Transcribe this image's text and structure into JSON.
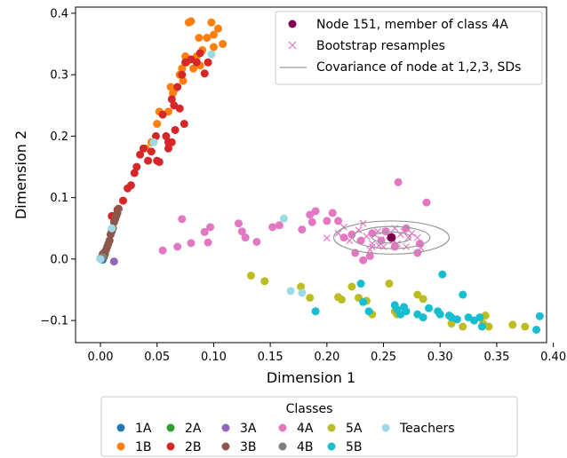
{
  "chart_data": {
    "type": "scatter",
    "xlabel": "Dimension 1",
    "ylabel": "Dimension 2",
    "xlim": [
      -0.022,
      0.394
    ],
    "ylim": [
      -0.136,
      0.41
    ],
    "xticks": [
      0.0,
      0.05,
      0.1,
      0.15,
      0.2,
      0.25,
      0.3,
      0.35,
      0.4
    ],
    "xtick_labels": [
      "0.00",
      "0.05",
      "0.10",
      "0.15",
      "0.20",
      "0.25",
      "0.30",
      "0.35",
      "0.40"
    ],
    "yticks": [
      -0.1,
      0.0,
      0.1,
      0.2,
      0.3,
      0.4
    ],
    "ytick_labels": [
      "−0.1",
      "0.0",
      "0.1",
      "0.2",
      "0.3",
      "0.4"
    ],
    "grid": false,
    "top_legend": {
      "position": "top-right",
      "entries": [
        {
          "label": "Node 151, member of class 4A",
          "marker": "dot",
          "color": "#800050"
        },
        {
          "label": "Bootstrap resamples",
          "marker": "x",
          "color": "#e377c2"
        },
        {
          "label": "Covariance of node at 1,2,3, SDs",
          "marker": "line",
          "color": "#808080"
        }
      ]
    },
    "class_legend": {
      "title": "Classes",
      "position": "below",
      "entries": [
        {
          "label": "1A",
          "color": "#1f77b4"
        },
        {
          "label": "1B",
          "color": "#ff7f0e"
        },
        {
          "label": "2A",
          "color": "#2ca02c"
        },
        {
          "label": "2B",
          "color": "#d62728"
        },
        {
          "label": "3A",
          "color": "#9467bd"
        },
        {
          "label": "3B",
          "color": "#8c564b"
        },
        {
          "label": "4A",
          "color": "#e377c2"
        },
        {
          "label": "4B",
          "color": "#7f7f7f"
        },
        {
          "label": "5A",
          "color": "#bcbd22"
        },
        {
          "label": "5B",
          "color": "#17becf"
        },
        {
          "label": "Teachers",
          "color": "#9edae5"
        }
      ]
    },
    "series": [
      {
        "name": "1A",
        "color": "#1f77b4",
        "points": [
          [
            0.0,
            0.0
          ],
          [
            0.001,
            0.001
          ],
          [
            0.002,
            -0.001
          ],
          [
            0.001,
            0.002
          ],
          [
            0.003,
            0.003
          ]
        ]
      },
      {
        "name": "1B",
        "color": "#ff7f0e",
        "points": [
          [
            0.04,
            0.18
          ],
          [
            0.045,
            0.19
          ],
          [
            0.05,
            0.22
          ],
          [
            0.052,
            0.24
          ],
          [
            0.06,
            0.24
          ],
          [
            0.062,
            0.28
          ],
          [
            0.064,
            0.27
          ],
          [
            0.065,
            0.275
          ],
          [
            0.068,
            0.28
          ],
          [
            0.07,
            0.3
          ],
          [
            0.072,
            0.31
          ],
          [
            0.075,
            0.33
          ],
          [
            0.076,
            0.32
          ],
          [
            0.078,
            0.385
          ],
          [
            0.08,
            0.387
          ],
          [
            0.082,
            0.31
          ],
          [
            0.085,
            0.33
          ],
          [
            0.087,
            0.36
          ],
          [
            0.088,
            0.315
          ],
          [
            0.09,
            0.34
          ],
          [
            0.094,
            0.36
          ],
          [
            0.095,
            0.32
          ],
          [
            0.098,
            0.385
          ],
          [
            0.1,
            0.365
          ],
          [
            0.104,
            0.375
          ],
          [
            0.108,
            0.35
          ],
          [
            0.1,
            0.345
          ],
          [
            0.073,
            0.29
          ]
        ]
      },
      {
        "name": "2A",
        "color": "#2ca02c",
        "points": [
          [
            0.003,
            0.005
          ],
          [
            0.004,
            0.008
          ]
        ]
      },
      {
        "name": "2B",
        "color": "#d62728",
        "points": [
          [
            0.01,
            0.07
          ],
          [
            0.015,
            0.08
          ],
          [
            0.02,
            0.095
          ],
          [
            0.024,
            0.115
          ],
          [
            0.027,
            0.12
          ],
          [
            0.03,
            0.14
          ],
          [
            0.032,
            0.15
          ],
          [
            0.035,
            0.17
          ],
          [
            0.038,
            0.18
          ],
          [
            0.042,
            0.16
          ],
          [
            0.045,
            0.175
          ],
          [
            0.049,
            0.2
          ],
          [
            0.05,
            0.16
          ],
          [
            0.052,
            0.158
          ],
          [
            0.055,
            0.235
          ],
          [
            0.06,
            0.19
          ],
          [
            0.063,
            0.26
          ],
          [
            0.065,
            0.25
          ],
          [
            0.068,
            0.28
          ],
          [
            0.072,
            0.3
          ],
          [
            0.075,
            0.32
          ],
          [
            0.08,
            0.325
          ],
          [
            0.085,
            0.32
          ],
          [
            0.088,
            0.335
          ],
          [
            0.092,
            0.302
          ],
          [
            0.095,
            0.32
          ],
          [
            0.074,
            0.22
          ],
          [
            0.07,
            0.245
          ],
          [
            0.066,
            0.21
          ],
          [
            0.063,
            0.19
          ],
          [
            0.06,
            0.18
          ],
          [
            0.058,
            0.2
          ]
        ]
      },
      {
        "name": "3A",
        "color": "#9467bd",
        "points": [
          [
            0.012,
            -0.004
          ]
        ]
      },
      {
        "name": "3B",
        "color": "#8c564b",
        "points": [
          [
            0.002,
            0.008
          ],
          [
            0.004,
            0.012
          ],
          [
            0.006,
            0.02
          ],
          [
            0.007,
            0.025
          ],
          [
            0.008,
            0.03
          ],
          [
            0.009,
            0.04
          ],
          [
            0.01,
            0.045
          ],
          [
            0.011,
            0.05
          ],
          [
            0.012,
            0.06
          ],
          [
            0.013,
            0.065
          ],
          [
            0.014,
            0.07
          ],
          [
            0.015,
            0.075
          ],
          [
            0.016,
            0.082
          ],
          [
            0.005,
            0.015
          ],
          [
            0.003,
            0.004
          ]
        ]
      },
      {
        "name": "4A",
        "color": "#e377c2",
        "points": [
          [
            0.055,
            0.014
          ],
          [
            0.068,
            0.02
          ],
          [
            0.072,
            0.065
          ],
          [
            0.08,
            0.026
          ],
          [
            0.092,
            0.044
          ],
          [
            0.095,
            0.027
          ],
          [
            0.097,
            0.052
          ],
          [
            0.122,
            0.058
          ],
          [
            0.125,
            0.045
          ],
          [
            0.128,
            0.035
          ],
          [
            0.138,
            0.028
          ],
          [
            0.152,
            0.052
          ],
          [
            0.158,
            0.055
          ],
          [
            0.185,
            0.072
          ],
          [
            0.187,
            0.06
          ],
          [
            0.19,
            0.078
          ],
          [
            0.178,
            0.048
          ],
          [
            0.205,
            0.075
          ],
          [
            0.2,
            0.062
          ],
          [
            0.21,
            0.062
          ],
          [
            0.215,
            0.035
          ],
          [
            0.222,
            0.04
          ],
          [
            0.225,
            0.01
          ],
          [
            0.23,
            0.03
          ],
          [
            0.232,
            -0.002
          ],
          [
            0.24,
            0.042
          ],
          [
            0.248,
            0.03
          ],
          [
            0.252,
            0.045
          ],
          [
            0.26,
            0.02
          ],
          [
            0.263,
            0.125
          ],
          [
            0.27,
            0.05
          ],
          [
            0.28,
            0.01
          ],
          [
            0.282,
            0.025
          ],
          [
            0.288,
            0.092
          ],
          [
            0.238,
            0.005
          ]
        ]
      },
      {
        "name": "4B",
        "color": "#7f7f7f",
        "points": [
          [
            0.0,
            0.001
          ],
          [
            0.001,
            0.0
          ],
          [
            0.002,
            0.003
          ]
        ]
      },
      {
        "name": "5A",
        "color": "#bcbd22",
        "points": [
          [
            0.133,
            -0.027
          ],
          [
            0.145,
            -0.036
          ],
          [
            0.177,
            -0.045
          ],
          [
            0.185,
            -0.063
          ],
          [
            0.21,
            -0.062
          ],
          [
            0.213,
            -0.066
          ],
          [
            0.222,
            -0.045
          ],
          [
            0.228,
            -0.063
          ],
          [
            0.235,
            -0.068
          ],
          [
            0.24,
            -0.09
          ],
          [
            0.255,
            -0.04
          ],
          [
            0.26,
            -0.085
          ],
          [
            0.262,
            -0.09
          ],
          [
            0.28,
            -0.058
          ],
          [
            0.285,
            -0.065
          ],
          [
            0.31,
            -0.105
          ],
          [
            0.32,
            -0.11
          ],
          [
            0.338,
            -0.105
          ],
          [
            0.34,
            -0.092
          ],
          [
            0.343,
            -0.11
          ],
          [
            0.364,
            -0.107
          ],
          [
            0.375,
            -0.11
          ]
        ]
      },
      {
        "name": "5B",
        "color": "#17becf",
        "points": [
          [
            0.19,
            -0.085
          ],
          [
            0.23,
            -0.04
          ],
          [
            0.232,
            -0.07
          ],
          [
            0.237,
            -0.085
          ],
          [
            0.26,
            -0.075
          ],
          [
            0.262,
            -0.082
          ],
          [
            0.265,
            -0.09
          ],
          [
            0.27,
            -0.085
          ],
          [
            0.28,
            -0.09
          ],
          [
            0.285,
            -0.095
          ],
          [
            0.29,
            -0.08
          ],
          [
            0.298,
            -0.085
          ],
          [
            0.3,
            -0.09
          ],
          [
            0.302,
            -0.025
          ],
          [
            0.308,
            -0.092
          ],
          [
            0.31,
            -0.095
          ],
          [
            0.315,
            -0.098
          ],
          [
            0.32,
            -0.058
          ],
          [
            0.325,
            -0.095
          ],
          [
            0.33,
            -0.1
          ],
          [
            0.335,
            -0.095
          ],
          [
            0.337,
            -0.11
          ],
          [
            0.385,
            -0.115
          ],
          [
            0.388,
            -0.093
          ],
          [
            0.268,
            -0.078
          ]
        ]
      },
      {
        "name": "Teachers",
        "color": "#9edae5",
        "points": [
          [
            0.0,
            0.0
          ],
          [
            0.01,
            0.05
          ],
          [
            0.047,
            0.19
          ],
          [
            0.098,
            0.333
          ],
          [
            0.162,
            0.066
          ],
          [
            0.168,
            -0.052
          ],
          [
            0.178,
            -0.055
          ]
        ]
      }
    ],
    "node": {
      "x": 0.257,
      "y": 0.035,
      "color": "#800050"
    },
    "bootstrap": {
      "color": "#e377c2",
      "points": [
        [
          0.2,
          0.034
        ],
        [
          0.21,
          0.042
        ],
        [
          0.215,
          0.052
        ],
        [
          0.22,
          0.03
        ],
        [
          0.228,
          0.047
        ],
        [
          0.232,
          0.058
        ],
        [
          0.235,
          0.037
        ],
        [
          0.24,
          0.025
        ],
        [
          0.24,
          0.02
        ],
        [
          0.242,
          0.04
        ],
        [
          0.245,
          0.045
        ],
        [
          0.248,
          0.032
        ],
        [
          0.25,
          0.02
        ],
        [
          0.252,
          0.045
        ],
        [
          0.255,
          0.038
        ],
        [
          0.258,
          0.03
        ],
        [
          0.26,
          0.05
        ],
        [
          0.262,
          0.025
        ],
        [
          0.265,
          0.04
        ],
        [
          0.268,
          0.045
        ],
        [
          0.27,
          0.02
        ],
        [
          0.272,
          0.035
        ],
        [
          0.275,
          0.042
        ],
        [
          0.28,
          0.035
        ],
        [
          0.283,
          0.018
        ],
        [
          0.238,
          0.015
        ],
        [
          0.246,
          0.022
        ]
      ]
    },
    "covariance": {
      "center": [
        0.257,
        0.035
      ],
      "sd1": [
        0.017,
        0.009
      ],
      "color": "#999999",
      "levels": [
        1,
        2,
        3
      ]
    }
  }
}
